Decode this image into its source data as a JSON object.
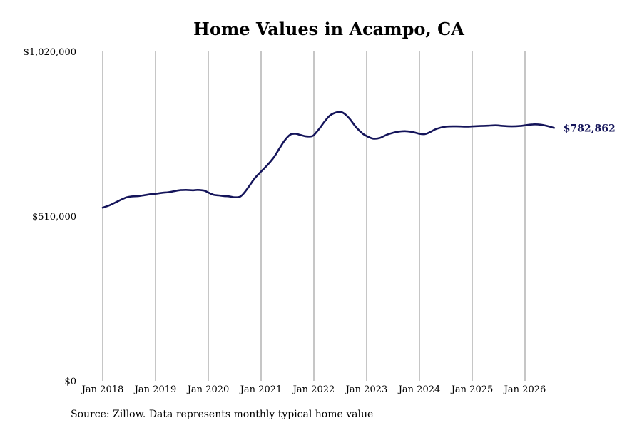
{
  "chart_data": {
    "type": "line",
    "title": "Home Values in Acampo, CA",
    "xlabel": "",
    "ylabel": "",
    "ylim": [
      0,
      1020000
    ],
    "y_ticks": [
      {
        "value": 0,
        "label": "$0"
      },
      {
        "value": 510000,
        "label": "$510,000"
      },
      {
        "value": 1020000,
        "label": "$1,020,000"
      }
    ],
    "x_ticks": [
      {
        "value": 2018.0,
        "label": "Jan 2018"
      },
      {
        "value": 2019.0,
        "label": "Jan 2019"
      },
      {
        "value": 2020.0,
        "label": "Jan 2020"
      },
      {
        "value": 2021.0,
        "label": "Jan 2021"
      },
      {
        "value": 2022.0,
        "label": "Jan 2022"
      },
      {
        "value": 2023.0,
        "label": "Jan 2023"
      },
      {
        "value": 2024.0,
        "label": "Jan 2024"
      },
      {
        "value": 2025.0,
        "label": "Jan 2025"
      },
      {
        "value": 2026.0,
        "label": "Jan 2026"
      }
    ],
    "xlim": [
      2018.0,
      2026.6
    ],
    "grid": "vertical",
    "line_color": "#14145a",
    "end_label": "$782,862",
    "series": [
      {
        "x": [
          2018.0,
          2018.12,
          2018.25,
          2018.35,
          2018.45,
          2018.55,
          2018.68,
          2018.8,
          2018.92,
          2019.0,
          2019.12,
          2019.25,
          2019.35,
          2019.45,
          2019.58,
          2019.7,
          2019.8,
          2019.92,
          2020.0,
          2020.1,
          2020.2,
          2020.3,
          2020.4,
          2020.5,
          2020.6,
          2020.68,
          2020.78,
          2020.88,
          2021.0,
          2021.12,
          2021.25,
          2021.35,
          2021.45,
          2021.55,
          2021.65,
          2021.75,
          2021.85,
          2021.95,
          2022.0,
          2022.1,
          2022.2,
          2022.3,
          2022.4,
          2022.5,
          2022.58,
          2022.68,
          2022.8,
          2022.92,
          2023.0,
          2023.12,
          2023.25,
          2023.38,
          2023.5,
          2023.62,
          2023.75,
          2023.88,
          2024.0,
          2024.1,
          2024.2,
          2024.32,
          2024.5,
          2024.7,
          2024.9,
          2025.0,
          2025.15,
          2025.3,
          2025.45,
          2025.6,
          2025.75,
          2025.9,
          2026.0,
          2026.15,
          2026.3,
          2026.45,
          2026.55
        ],
        "values": [
          536000,
          543000,
          553000,
          561000,
          568000,
          571000,
          572000,
          575000,
          578000,
          579000,
          582000,
          584000,
          587000,
          590000,
          591000,
          590000,
          591000,
          589000,
          583000,
          576000,
          574000,
          572000,
          571000,
          568000,
          570000,
          582000,
          604000,
          627000,
          648000,
          668000,
          694000,
          720000,
          745000,
          762000,
          765000,
          761000,
          757000,
          757000,
          761000,
          780000,
          802000,
          821000,
          830000,
          833000,
          827000,
          811000,
          785000,
          766000,
          758000,
          750000,
          752000,
          762000,
          768000,
          772000,
          773000,
          770000,
          765000,
          764000,
          770000,
          780000,
          787000,
          788000,
          787000,
          788000,
          789000,
          790000,
          791000,
          789000,
          788000,
          789000,
          791000,
          794000,
          793000,
          788000,
          783000
        ]
      }
    ]
  },
  "footer": {
    "source": "Source: Zillow. Data represents monthly typical home value"
  }
}
